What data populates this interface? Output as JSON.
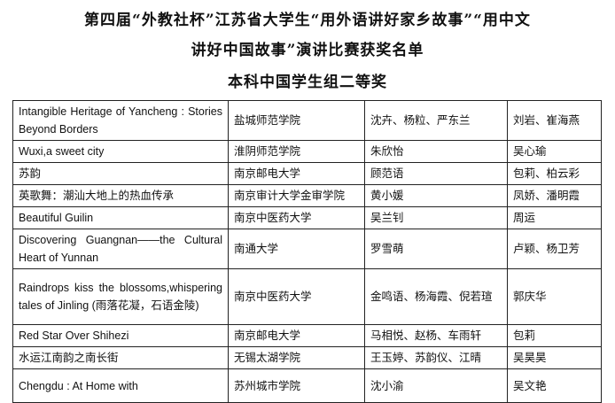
{
  "header": {
    "title_line1": "第四届“外教社杯”江苏省大学生“用外语讲好家乡故事”“用中文",
    "title_line2": "讲好中国故事”演讲比赛获奖名单",
    "subtitle": "本科中国学生组二等奖"
  },
  "table": {
    "rows": [
      {
        "title": "Intangible Heritage of Yancheng : Stories Beyond Borders",
        "school": "盐城师范学院",
        "students": "沈卉、杨粒、严东兰",
        "advisors": "刘岩、崔海燕"
      },
      {
        "title": "Wuxi,a sweet city",
        "school": "淮阴师范学院",
        "students": "朱欣怡",
        "advisors": "吴心瑜"
      },
      {
        "title": "苏韵",
        "school": "南京邮电大学",
        "students": "顾范语",
        "advisors": "包莉、柏云彩"
      },
      {
        "title": "英歌舞：潮汕大地上的热血传承",
        "school": "南京审计大学金审学院",
        "students": "黄小媛",
        "advisors": "凤娇、潘明霞"
      },
      {
        "title": "Beautiful Guilin",
        "school": "南京中医药大学",
        "students": "吴兰钊",
        "advisors": "周运"
      },
      {
        "title": "Discovering Guangnan——the Cultural Heart of Yunnan",
        "school": "南通大学",
        "students": "罗雪萌",
        "advisors": "卢颖、杨卫芳"
      },
      {
        "title": "Raindrops kiss the blossoms,whispering tales of Jinling (雨落花凝，石语金陵)",
        "school": "南京中医药大学",
        "students": "金鸣语、杨海霞、倪若瑄",
        "advisors": "郭庆华"
      },
      {
        "title": "Red Star Over Shihezi",
        "school": "南京邮电大学",
        "students": "马相悦、赵杨、车雨轩",
        "advisors": "包莉"
      },
      {
        "title": "水运江南韵之南长街",
        "school": "无锡太湖学院",
        "students": "王玉婷、苏韵仪、江晴",
        "advisors": "吴昊昊"
      },
      {
        "title": "Chengdu : At Home with",
        "school": "苏州城市学院",
        "students": "沈小渝",
        "advisors": "吴文艳"
      }
    ]
  }
}
